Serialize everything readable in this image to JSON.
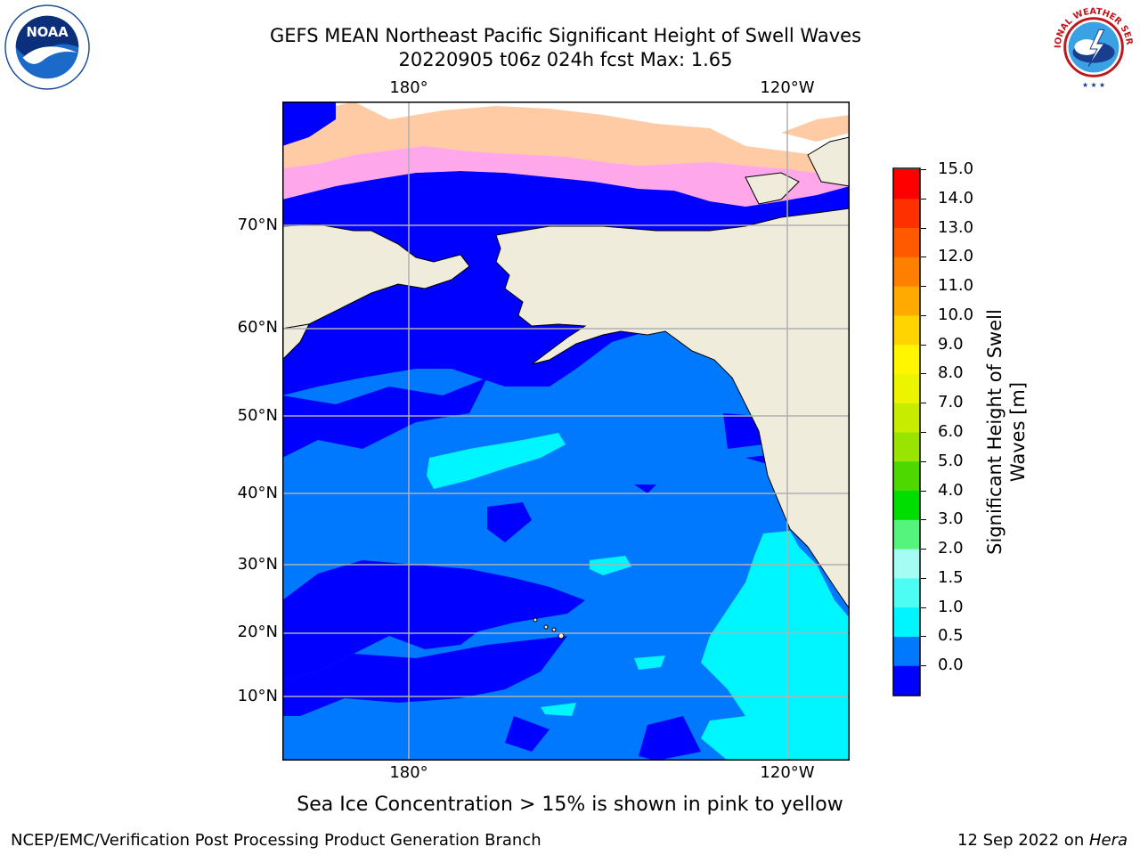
{
  "header": {
    "title": "GEFS MEAN Northeast Pacific Significant Height of Swell Waves",
    "subtitle": "20220905 t06z 024h fcst   Max: 1.65"
  },
  "logos": {
    "left": "noaa-logo",
    "left_text": "NOAA",
    "right": "nws-logo",
    "right_text": "NATIONAL WEATHER SERVICE"
  },
  "map": {
    "lat_labels": [
      "70°N",
      "60°N",
      "50°N",
      "40°N",
      "30°N",
      "20°N",
      "10°N"
    ],
    "lon_labels_top": [
      "180°",
      "120°W"
    ],
    "lon_labels_bottom": [
      "180°",
      "120°W"
    ],
    "colors": {
      "land": "#efecdc",
      "water_0_0_5": "#0000ff",
      "water_0_5_1_0": "#0079ff",
      "water_1_0_1_5": "#00f6ff",
      "ice_white": "#ffffff",
      "ice_pink": "#ff5fd8",
      "ice_peach": "#ffc59a",
      "gridline": "#b0b0b0"
    }
  },
  "colorbar": {
    "label_line1": "Significant Height of Swell",
    "label_line2": "Waves [m]",
    "ticks": [
      "15.0",
      "14.0",
      "13.0",
      "12.0",
      "11.0",
      "10.0",
      "9.0",
      "8.0",
      "7.0",
      "6.0",
      "5.0",
      "4.0",
      "3.0",
      "2.0",
      "1.5",
      "1.0",
      "0.5",
      "0.0"
    ],
    "colors": [
      "#0000ff",
      "#0079ff",
      "#00f6ff",
      "#4dfcf3",
      "#a4fcf3",
      "#55f57d",
      "#00de00",
      "#4dd900",
      "#99e400",
      "#c8ec00",
      "#ecf400",
      "#fff600",
      "#ffd400",
      "#ffaa00",
      "#ff8000",
      "#ff5a00",
      "#ff3000",
      "#ff0000"
    ]
  },
  "notes": {
    "ice": "Sea Ice Concentration > 15% is shown in pink to yellow"
  },
  "footer": {
    "left": "NCEP/EMC/Verification Post Processing Product Generation Branch",
    "date": "12 Sep 2022 on ",
    "machine": "Hera"
  }
}
